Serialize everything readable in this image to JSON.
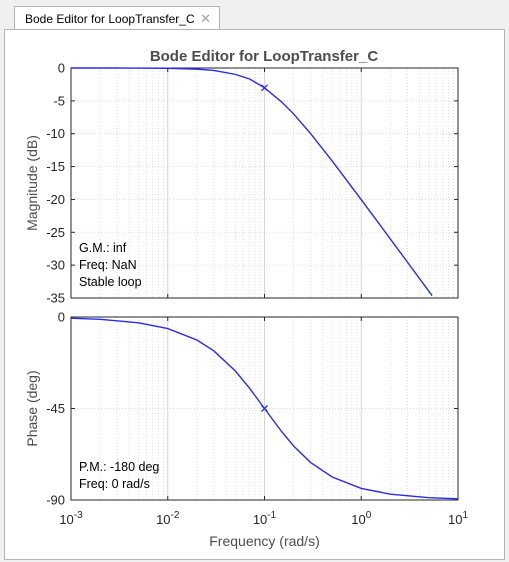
{
  "window": {
    "tab_label": "Bode Editor for LoopTransfer_C",
    "close_icon": "close-icon"
  },
  "colors": {
    "curve": "#2a2af0",
    "axes": "#262626",
    "grid": "#d6d6d6",
    "title": "#4d4d4d"
  },
  "chart_data": [
    {
      "type": "line",
      "title": "Bode Editor for LoopTransfer_C",
      "xlabel": "",
      "ylabel": "Magnitude (dB)",
      "xscale": "log",
      "xlim": [
        0.001,
        10
      ],
      "ylim": [
        -35,
        0
      ],
      "yticks": [
        0,
        -5,
        -10,
        -15,
        -20,
        -25,
        -30,
        -35
      ],
      "ytick_labels": [
        "0",
        "-5",
        "-10",
        "-15",
        "-20",
        "-25",
        "-30",
        "-35"
      ],
      "grid": true,
      "series": [
        {
          "x": [
            0.001,
            0.003,
            0.01,
            0.02,
            0.03,
            0.05,
            0.07,
            0.1,
            0.15,
            0.2,
            0.3,
            0.5,
            0.7,
            1,
            2,
            3,
            5.4
          ],
          "y": [
            0,
            0,
            -0.04,
            -0.17,
            -0.37,
            -0.97,
            -1.67,
            -3.01,
            -5.16,
            -6.99,
            -10.0,
            -14.15,
            -16.99,
            -20.04,
            -26.03,
            -29.54,
            -34.65
          ]
        }
      ],
      "marker": {
        "x": 0.1,
        "y": -3.01
      },
      "annotations": [
        "G.M.: inf",
        "Freq: NaN",
        "Stable loop"
      ]
    },
    {
      "type": "line",
      "title": "",
      "xlabel": "Frequency (rad/s)",
      "ylabel": "Phase (deg)",
      "xscale": "log",
      "xlim": [
        0.001,
        10
      ],
      "ylim": [
        -90,
        0
      ],
      "yticks": [
        0,
        -45,
        -90
      ],
      "ytick_labels": [
        "0",
        "-45",
        "-90"
      ],
      "xticks": [
        0.001,
        0.01,
        0.1,
        1,
        10
      ],
      "xtick_labels": [
        {
          "base": "10",
          "exp": "-3"
        },
        {
          "base": "10",
          "exp": "-2"
        },
        {
          "base": "10",
          "exp": "-1"
        },
        {
          "base": "10",
          "exp": "0"
        },
        {
          "base": "10",
          "exp": "1"
        }
      ],
      "grid": true,
      "series": [
        {
          "x": [
            0.001,
            0.002,
            0.005,
            0.01,
            0.02,
            0.03,
            0.05,
            0.07,
            0.1,
            0.15,
            0.2,
            0.3,
            0.5,
            1,
            2,
            5,
            10
          ],
          "y": [
            -0.57,
            -1.15,
            -2.86,
            -5.71,
            -11.31,
            -16.7,
            -26.57,
            -34.99,
            -45,
            -56.31,
            -63.43,
            -71.57,
            -78.69,
            -84.29,
            -87.14,
            -88.85,
            -89.43
          ]
        }
      ],
      "marker": {
        "x": 0.1,
        "y": -45
      },
      "annotations": [
        "P.M.: -180 deg",
        "Freq: 0 rad/s"
      ]
    }
  ]
}
